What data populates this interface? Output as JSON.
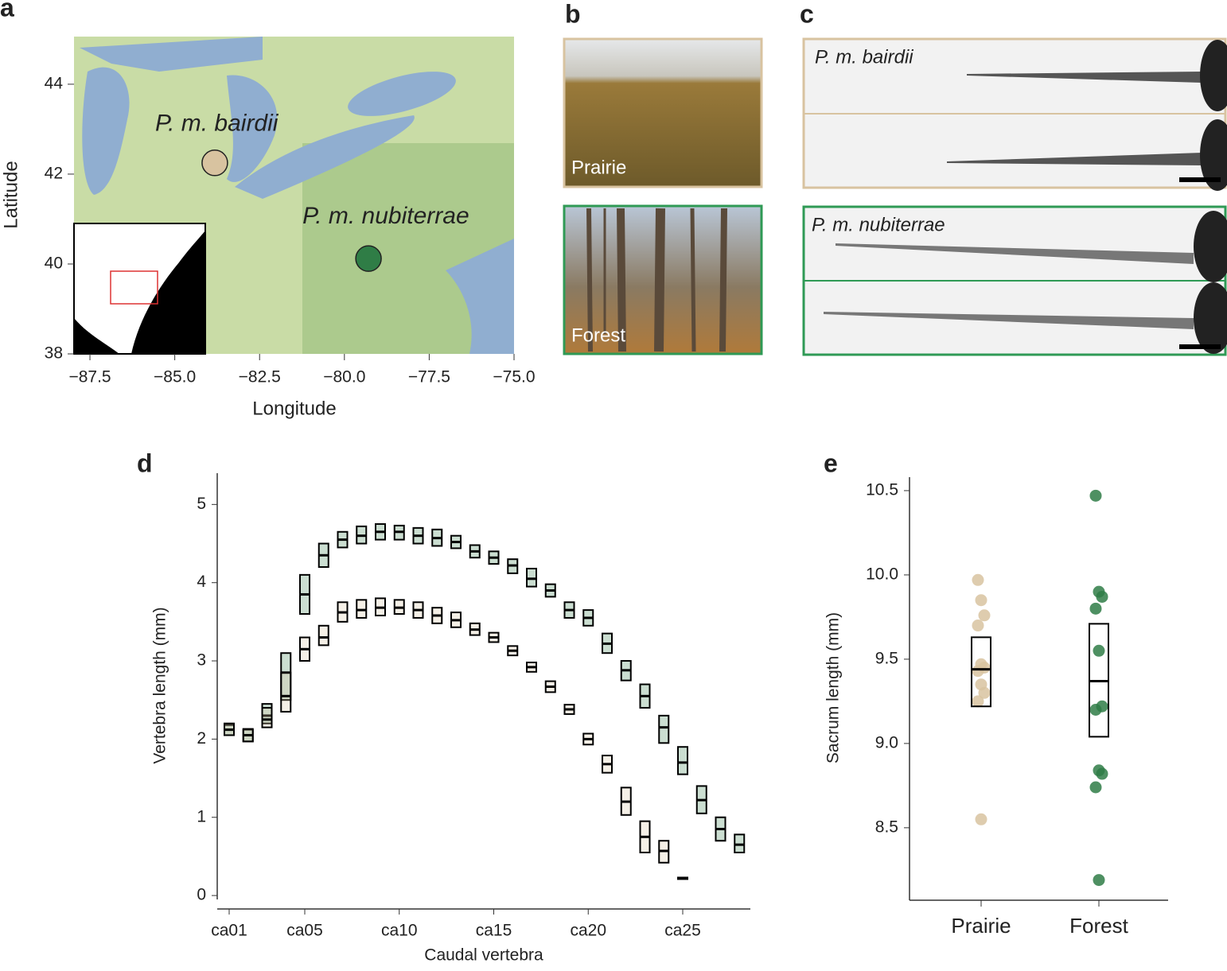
{
  "panels": [
    "a",
    "b",
    "c",
    "d",
    "e"
  ],
  "photos": {
    "labels": [
      "Prairie",
      "Forest"
    ]
  },
  "xrays": {
    "labels": [
      "P. m. bairdii",
      "P. m. nubiterrae"
    ]
  },
  "chart_data": [
    {
      "type": "scatter",
      "xlabel": "Longitude",
      "ylabel": "Latitude",
      "xlim": [
        -87.97,
        -75
      ],
      "ylim": [
        38,
        45.06
      ],
      "xticks": [
        {
          "value": -87.5,
          "label": "−87.5"
        },
        {
          "value": -85,
          "label": "−85.0"
        },
        {
          "value": -82.5,
          "label": "−82.5"
        },
        {
          "value": -80,
          "label": "−80.0"
        },
        {
          "value": -77.5,
          "label": "−77.5"
        },
        {
          "value": -75,
          "label": "−75.0"
        }
      ],
      "yticks": [
        38,
        40,
        42,
        44
      ],
      "labels": [
        "P. m. bairdii",
        "P. m. nubiterrae"
      ],
      "x": [
        -83.82,
        -79.29
      ],
      "y": [
        42.25,
        40.12
      ],
      "colors": [
        "#d8c3a0",
        "#2f7d46"
      ]
    },
    {
      "type": "box",
      "xlabel": "Caudal vertebra",
      "ylabel": "Vertebra length (mm)",
      "categories": [
        "ca01",
        null,
        null,
        null,
        "ca05",
        null,
        null,
        null,
        null,
        "ca10",
        null,
        null,
        null,
        null,
        "ca15",
        null,
        null,
        null,
        null,
        "ca20",
        null,
        null,
        null,
        null,
        "ca25",
        null,
        null,
        null
      ],
      "ylim": [
        -0.05,
        5.4
      ],
      "yticks": [
        0,
        1,
        2,
        3,
        4,
        5
      ],
      "series": [
        {
          "color": "#2f7d46",
          "mean": [
            2.12,
            2.05,
            2.3,
            2.85,
            3.85,
            4.35,
            4.55,
            4.6,
            4.65,
            4.65,
            4.6,
            4.57,
            4.52,
            4.4,
            4.32,
            4.22,
            4.05,
            3.9,
            3.65,
            3.55,
            3.22,
            2.88,
            2.55,
            2.15,
            1.7,
            1.22,
            0.85,
            0.65
          ],
          "low": [
            2.05,
            1.97,
            2.2,
            2.5,
            3.6,
            4.2,
            4.45,
            4.5,
            4.55,
            4.55,
            4.5,
            4.47,
            4.44,
            4.32,
            4.24,
            4.12,
            3.95,
            3.82,
            3.55,
            3.45,
            3.1,
            2.75,
            2.4,
            1.95,
            1.55,
            1.05,
            0.7,
            0.55
          ],
          "high": [
            2.18,
            2.12,
            2.45,
            3.1,
            4.1,
            4.5,
            4.65,
            4.72,
            4.75,
            4.73,
            4.7,
            4.68,
            4.6,
            4.48,
            4.4,
            4.3,
            4.18,
            3.98,
            3.75,
            3.65,
            3.35,
            3.0,
            2.7,
            2.3,
            1.9,
            1.4,
            1.0,
            0.78
          ]
        },
        {
          "color": "#d8c3a0",
          "mean": [
            2.12,
            2.05,
            2.25,
            2.55,
            3.15,
            3.3,
            3.62,
            3.65,
            3.68,
            3.68,
            3.65,
            3.58,
            3.52,
            3.4,
            3.3,
            3.13,
            2.92,
            2.67,
            2.38,
            2.0,
            1.68,
            1.2,
            0.75,
            0.57,
            0.22,
            null,
            null,
            null
          ],
          "low": [
            2.05,
            1.97,
            2.15,
            2.35,
            3.0,
            3.2,
            3.5,
            3.55,
            3.58,
            3.6,
            3.55,
            3.48,
            3.43,
            3.33,
            3.24,
            3.07,
            2.86,
            2.6,
            2.32,
            1.93,
            1.57,
            1.03,
            0.55,
            0.42,
            0.21,
            null,
            null,
            null
          ],
          "high": [
            2.2,
            2.13,
            2.4,
            2.85,
            3.3,
            3.45,
            3.75,
            3.78,
            3.8,
            3.78,
            3.75,
            3.68,
            3.62,
            3.48,
            3.36,
            3.19,
            2.98,
            2.74,
            2.44,
            2.07,
            1.79,
            1.38,
            0.95,
            0.7,
            0.23,
            null,
            null,
            null
          ]
        }
      ]
    },
    {
      "type": "box",
      "ylabel": "Sacrum length (mm)",
      "categories": [
        "Prairie",
        "Forest"
      ],
      "colors": [
        "#d8c3a0",
        "#2f7d46"
      ],
      "ylim": [
        8.07,
        10.58
      ],
      "yticks": [
        8.5,
        {
          "value": 9,
          "label": "9.0"
        },
        9.5,
        {
          "value": 10,
          "label": "10.0"
        },
        10.5
      ],
      "points": [
        [
          9.97,
          9.85,
          9.76,
          9.7,
          9.47,
          9.45,
          9.43,
          9.35,
          9.3,
          9.25,
          8.55
        ],
        [
          10.47,
          9.9,
          9.87,
          9.8,
          9.55,
          9.22,
          9.2,
          8.84,
          8.82,
          8.74,
          8.19
        ]
      ],
      "mean": [
        9.44,
        9.37
      ],
      "low": [
        9.22,
        9.04
      ],
      "high": [
        9.63,
        9.71
      ]
    }
  ]
}
